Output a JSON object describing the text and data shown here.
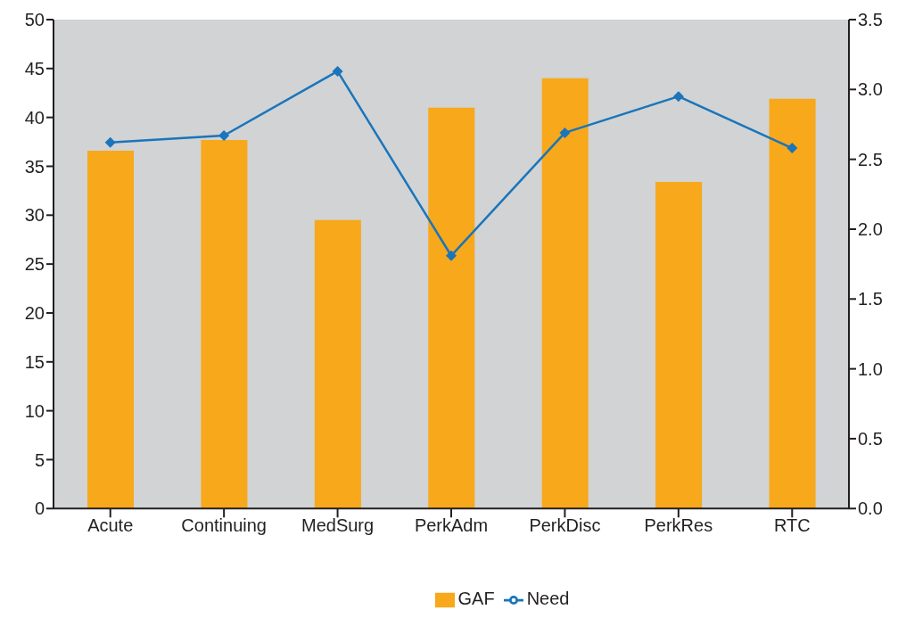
{
  "chart_data": {
    "type": "bar",
    "categories": [
      "Acute",
      "Continuing",
      "MedSurg",
      "PerkAdm",
      "PerkDisc",
      "PerkRes",
      "RTC"
    ],
    "series": [
      {
        "name": "GAF",
        "color": "#f7a81b",
        "values": [
          36.6,
          37.7,
          29.5,
          41.0,
          44.0,
          33.4,
          41.9
        ]
      },
      {
        "name": "Need",
        "type": "line",
        "axis": "y2",
        "color": "#1a75bb",
        "marker": "diamond",
        "values": [
          2.62,
          2.67,
          3.13,
          1.81,
          2.69,
          2.95,
          2.58
        ]
      }
    ],
    "ylim": [
      0,
      50
    ],
    "yticks": [
      0,
      5,
      10,
      15,
      20,
      25,
      30,
      35,
      40,
      45,
      50
    ],
    "y2lim": [
      0,
      3.5
    ],
    "y2ticks": [
      {
        "value": 0,
        "label": "0.0"
      },
      {
        "value": 0.5,
        "label": "0.5"
      },
      {
        "value": 1,
        "label": "1.0"
      },
      {
        "value": 1.5,
        "label": "1.5"
      },
      {
        "value": 2,
        "label": "2.0"
      },
      {
        "value": 2.5,
        "label": "2.5"
      },
      {
        "value": 3,
        "label": "3.0"
      },
      {
        "value": 3.5,
        "label": "3.5"
      }
    ],
    "legend": "bottom"
  }
}
